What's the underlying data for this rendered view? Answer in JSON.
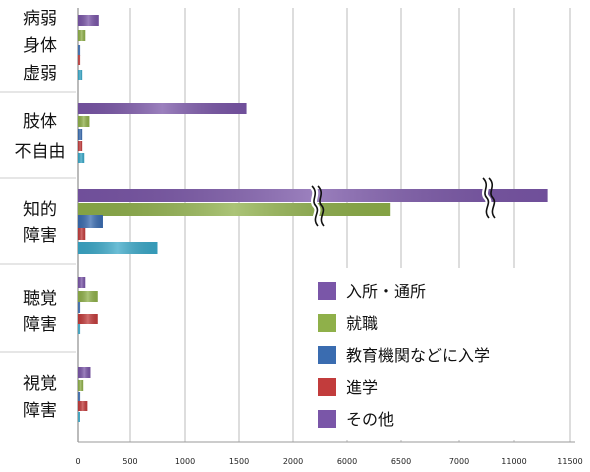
{
  "chart_data": {
    "type": "bar",
    "orientation": "horizontal",
    "categories": [
      [
        "病弱",
        "身体",
        "虚弱"
      ],
      [
        "肢体",
        "不自由"
      ],
      [
        "知的",
        "障害"
      ],
      [
        "聴覚",
        "障害"
      ],
      [
        "視覚",
        "障害"
      ]
    ],
    "x_ticks": [
      "0",
      "500",
      "1000",
      "1500",
      "2000",
      "6000",
      "6500",
      "7000",
      "11000",
      "11500"
    ],
    "x_tick_values": [
      0,
      500,
      1000,
      1500,
      2000,
      6000,
      6500,
      7000,
      11000,
      11500
    ],
    "axis_breaks": [
      [
        2250,
        5750
      ],
      [
        7250,
        10750
      ]
    ],
    "grid": true,
    "legend_position": "bottom-right",
    "series": [
      {
        "name": "入所・通所",
        "color": "#7a56a8",
        "values": [
          200,
          1570,
          11300,
          70,
          120
        ]
      },
      {
        "name": "就職",
        "color": "#8fb04a",
        "values": [
          70,
          110,
          6400,
          190,
          50
        ]
      },
      {
        "name": "教育機関などに入学",
        "color": "#3a6cb0",
        "values": [
          20,
          40,
          240,
          20,
          20
        ]
      },
      {
        "name": "進学",
        "color": "#c23c3c",
        "values": [
          20,
          40,
          70,
          190,
          90
        ]
      },
      {
        "name": "その他",
        "color": "#3aa8c8",
        "values": [
          40,
          60,
          750,
          20,
          10
        ]
      }
    ]
  }
}
